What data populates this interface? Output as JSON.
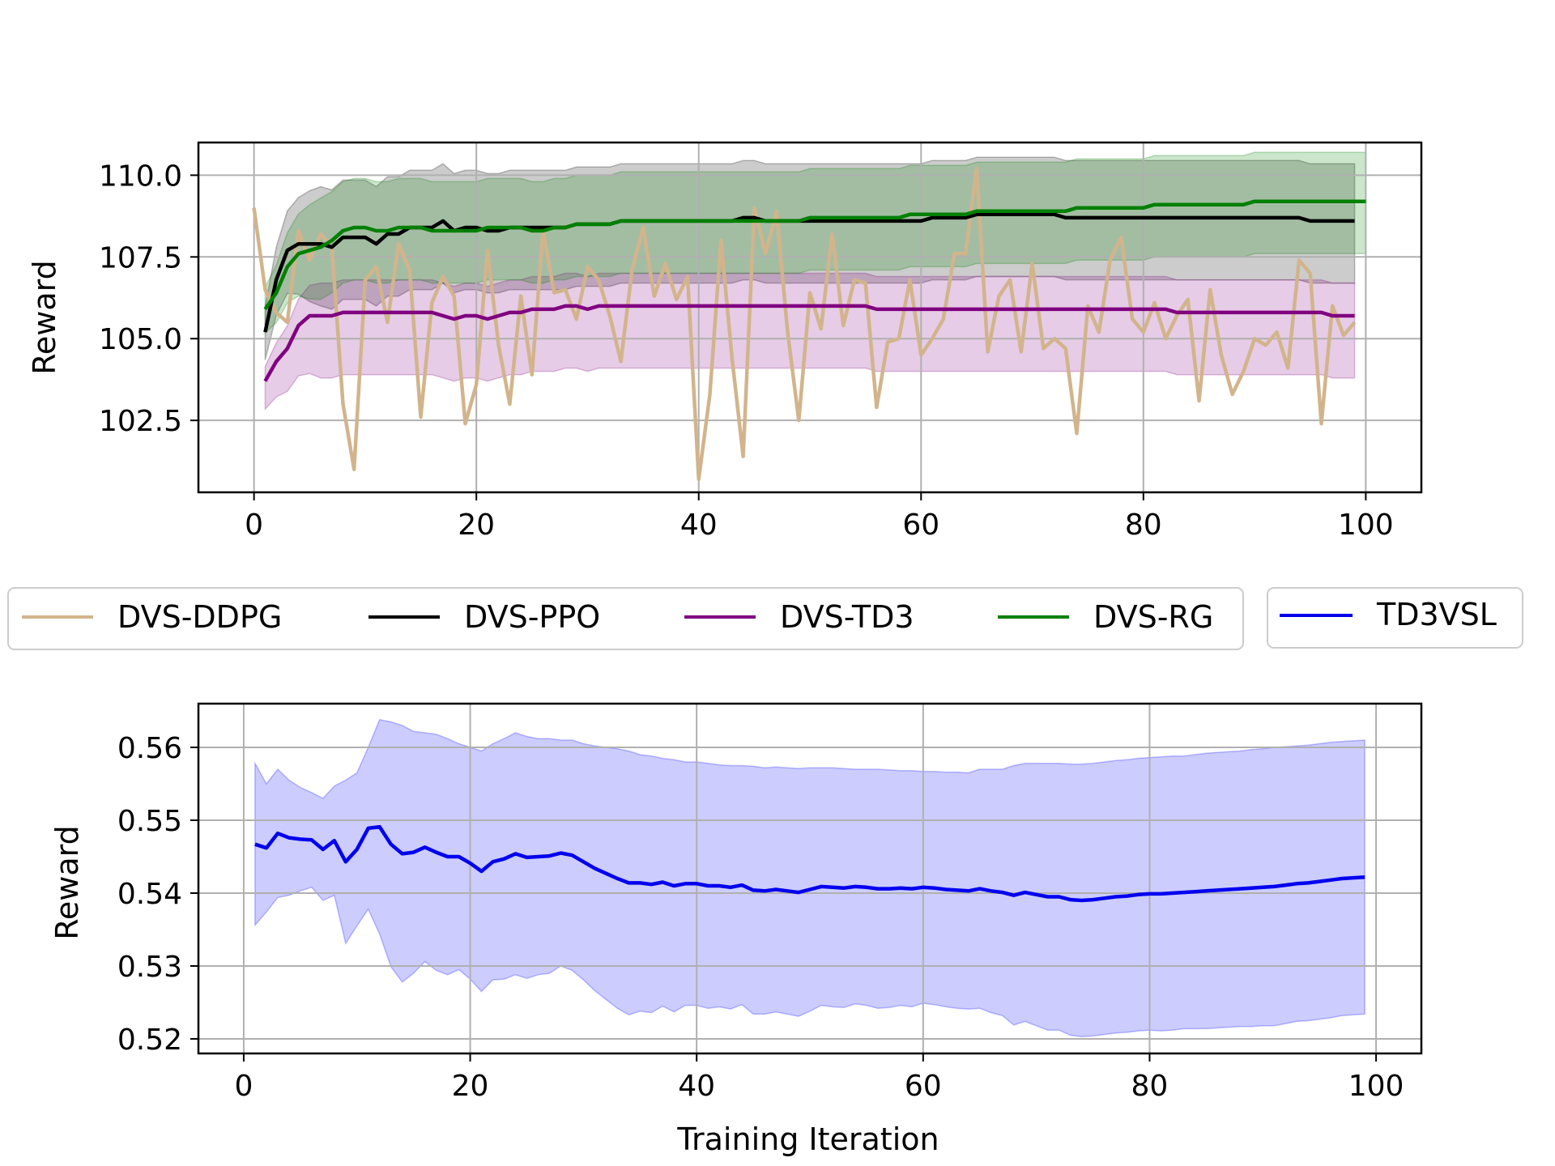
{
  "chart_data": [
    {
      "type": "line",
      "title": "",
      "xlabel": "",
      "ylabel": "Reward",
      "xlim": [
        -5,
        105
      ],
      "ylim": [
        100.3,
        111.0
      ],
      "xticks": [
        0,
        20,
        40,
        60,
        80,
        100
      ],
      "yticks": [
        102.5,
        105.0,
        107.5,
        110.0
      ],
      "ytick_labels": [
        "102.5",
        "105.0",
        "107.5",
        "110.0"
      ],
      "grid": true,
      "series": [
        {
          "name": "DVS-DDPG",
          "color": "#d2b48c",
          "x_start": 0,
          "values": [
            109.0,
            106.5,
            105.8,
            105.5,
            108.3,
            107.4,
            108.2,
            107.8,
            103.0,
            101.0,
            106.8,
            107.2,
            105.5,
            107.9,
            107.1,
            102.6,
            106.1,
            106.9,
            106.3,
            102.4,
            103.6,
            107.7,
            104.8,
            103.0,
            106.3,
            103.9,
            108.3,
            106.4,
            106.5,
            105.6,
            107.2,
            106.8,
            105.7,
            104.3,
            107.1,
            108.4,
            106.3,
            107.3,
            106.2,
            106.9,
            100.7,
            103.3,
            108.0,
            104.4,
            101.4,
            109.0,
            107.6,
            108.9,
            105.2,
            102.5,
            106.4,
            105.3,
            108.2,
            105.4,
            106.8,
            106.7,
            102.9,
            104.9,
            105.0,
            106.8,
            104.5,
            105.0,
            105.6,
            107.6,
            107.6,
            110.2,
            104.6,
            106.3,
            106.8,
            104.6,
            107.3,
            104.7,
            105.0,
            104.7,
            102.1,
            106.0,
            105.2,
            107.4,
            108.1,
            105.6,
            105.2,
            106.1,
            105.0,
            105.7,
            106.2,
            103.1,
            106.5,
            104.5,
            103.3,
            104.0,
            105.0,
            104.8,
            105.2,
            104.1,
            107.4,
            107.0,
            102.4,
            106.0,
            105.1,
            105.5
          ]
        },
        {
          "name": "DVS-PPO",
          "color": "#000000",
          "x_start": 1,
          "values": [
            105.2,
            106.8,
            107.7,
            107.9,
            107.9,
            107.9,
            107.8,
            108.1,
            108.1,
            108.1,
            107.9,
            108.2,
            108.2,
            108.4,
            108.4,
            108.4,
            108.6,
            108.3,
            108.4,
            108.4,
            108.3,
            108.3,
            108.4,
            108.4,
            108.4,
            108.4,
            108.4,
            108.4,
            108.5,
            108.5,
            108.5,
            108.5,
            108.6,
            108.6,
            108.6,
            108.6,
            108.6,
            108.6,
            108.6,
            108.6,
            108.6,
            108.6,
            108.6,
            108.7,
            108.7,
            108.6,
            108.6,
            108.6,
            108.6,
            108.6,
            108.6,
            108.6,
            108.6,
            108.6,
            108.6,
            108.6,
            108.6,
            108.6,
            108.6,
            108.6,
            108.7,
            108.7,
            108.7,
            108.7,
            108.8,
            108.8,
            108.8,
            108.8,
            108.8,
            108.8,
            108.8,
            108.8,
            108.7,
            108.7,
            108.7,
            108.7,
            108.7,
            108.7,
            108.7,
            108.7,
            108.7,
            108.7,
            108.7,
            108.7,
            108.7,
            108.7,
            108.7,
            108.7,
            108.7,
            108.7,
            108.7,
            108.7,
            108.7,
            108.7,
            108.6,
            108.6,
            108.6,
            108.6,
            108.6
          ]
        },
        {
          "name": "DVS-TD3",
          "color": "#800080",
          "x_start": 1,
          "values": [
            103.7,
            104.3,
            104.7,
            105.4,
            105.7,
            105.7,
            105.7,
            105.8,
            105.8,
            105.8,
            105.8,
            105.8,
            105.8,
            105.8,
            105.8,
            105.8,
            105.7,
            105.6,
            105.7,
            105.7,
            105.6,
            105.7,
            105.8,
            105.8,
            105.9,
            105.9,
            105.9,
            106.0,
            106.0,
            105.9,
            106.0,
            106.0,
            106.0,
            106.0,
            106.0,
            106.0,
            106.0,
            106.0,
            106.0,
            106.0,
            106.0,
            106.0,
            106.0,
            106.0,
            106.0,
            106.0,
            106.0,
            106.0,
            106.0,
            106.0,
            106.0,
            106.0,
            106.0,
            106.0,
            106.0,
            105.9,
            105.9,
            105.9,
            105.9,
            105.9,
            105.9,
            105.9,
            105.9,
            105.9,
            105.9,
            105.9,
            105.9,
            105.9,
            105.9,
            105.9,
            105.9,
            105.9,
            105.9,
            105.9,
            105.9,
            105.9,
            105.9,
            105.9,
            105.9,
            105.9,
            105.9,
            105.9,
            105.8,
            105.8,
            105.8,
            105.8,
            105.8,
            105.8,
            105.8,
            105.8,
            105.8,
            105.8,
            105.8,
            105.8,
            105.8,
            105.8,
            105.7,
            105.7,
            105.7
          ]
        },
        {
          "name": "DVS-RG",
          "color": "#008000",
          "x_start": 1,
          "values": [
            105.9,
            106.4,
            107.2,
            107.6,
            107.7,
            107.8,
            108.0,
            108.3,
            108.4,
            108.4,
            108.3,
            108.3,
            108.4,
            108.4,
            108.4,
            108.3,
            108.3,
            108.3,
            108.3,
            108.3,
            108.4,
            108.4,
            108.4,
            108.4,
            108.3,
            108.3,
            108.4,
            108.4,
            108.5,
            108.5,
            108.5,
            108.5,
            108.6,
            108.6,
            108.6,
            108.6,
            108.6,
            108.6,
            108.6,
            108.6,
            108.6,
            108.6,
            108.6,
            108.6,
            108.6,
            108.6,
            108.6,
            108.6,
            108.6,
            108.7,
            108.7,
            108.7,
            108.7,
            108.7,
            108.7,
            108.7,
            108.7,
            108.7,
            108.8,
            108.8,
            108.8,
            108.8,
            108.8,
            108.8,
            108.9,
            108.9,
            108.9,
            108.9,
            108.9,
            108.9,
            108.9,
            108.9,
            108.9,
            109.0,
            109.0,
            109.0,
            109.0,
            109.0,
            109.0,
            109.0,
            109.1,
            109.1,
            109.1,
            109.1,
            109.1,
            109.1,
            109.1,
            109.1,
            109.1,
            109.2,
            109.2,
            109.2,
            109.2,
            109.2,
            109.2,
            109.2,
            109.2,
            109.2,
            109.2,
            109.2
          ]
        }
      ],
      "bands": [
        {
          "series": "DVS-PPO",
          "color": "#000000",
          "x_start": 1,
          "lower_offset": -1.9,
          "upper_offset": 1.75
        },
        {
          "series": "DVS-TD3",
          "color": "#800080",
          "x_start": 1,
          "lower_offset": -1.9,
          "upper_offset": 1.0
        },
        {
          "series": "DVS-RG",
          "color": "#008000",
          "x_start": 1,
          "lower_offset": -1.6,
          "upper_offset": 1.5
        }
      ]
    },
    {
      "type": "line",
      "title": "",
      "xlabel": "Training Iteration",
      "ylabel": "Reward",
      "xlim": [
        -4,
        104
      ],
      "ylim": [
        0.518,
        0.566
      ],
      "xticks": [
        0,
        20,
        40,
        60,
        80,
        100
      ],
      "yticks": [
        0.52,
        0.53,
        0.54,
        0.55,
        0.56
      ],
      "ytick_labels": [
        "0.52",
        "0.53",
        "0.54",
        "0.55",
        "0.56"
      ],
      "grid": true,
      "series": [
        {
          "name": "TD3VSL",
          "color": "#0000ee",
          "x_start": 1,
          "values": [
            0.5467,
            0.5462,
            0.5482,
            0.5476,
            0.5474,
            0.5473,
            0.546,
            0.5472,
            0.5443,
            0.546,
            0.5489,
            0.5491,
            0.5467,
            0.5454,
            0.5456,
            0.5463,
            0.5456,
            0.545,
            0.545,
            0.5441,
            0.543,
            0.5443,
            0.5447,
            0.5454,
            0.5449,
            0.545,
            0.5451,
            0.5455,
            0.5452,
            0.5443,
            0.5434,
            0.5427,
            0.542,
            0.5414,
            0.5414,
            0.5412,
            0.5415,
            0.541,
            0.5413,
            0.5413,
            0.541,
            0.541,
            0.5408,
            0.5411,
            0.5404,
            0.5403,
            0.5405,
            0.5403,
            0.5401,
            0.5405,
            0.5409,
            0.5408,
            0.5407,
            0.5409,
            0.5408,
            0.5406,
            0.5406,
            0.5407,
            0.5406,
            0.5408,
            0.5407,
            0.5405,
            0.5404,
            0.5403,
            0.5406,
            0.5403,
            0.5401,
            0.5397,
            0.5401,
            0.5398,
            0.5395,
            0.5395,
            0.5391,
            0.539,
            0.5391,
            0.5393,
            0.5395,
            0.5396,
            0.5398,
            0.5399,
            0.5399,
            0.54,
            0.5401,
            0.5402,
            0.5403,
            0.5404,
            0.5405,
            0.5406,
            0.5407,
            0.5408,
            0.5409,
            0.5411,
            0.5413,
            0.5414,
            0.5416,
            0.5418,
            0.542,
            0.5421,
            0.5422
          ]
        }
      ],
      "bands": [
        {
          "series": "TD3VSL",
          "color": "#0000ff",
          "x_start": 1,
          "upper": [
            0.5578,
            0.555,
            0.557,
            0.5555,
            0.5545,
            0.5538,
            0.553,
            0.5547,
            0.5555,
            0.5565,
            0.56,
            0.5638,
            0.5635,
            0.563,
            0.5622,
            0.562,
            0.5618,
            0.5612,
            0.5605,
            0.56,
            0.5595,
            0.5605,
            0.5612,
            0.562,
            0.5615,
            0.5612,
            0.5612,
            0.561,
            0.561,
            0.5605,
            0.5602,
            0.56,
            0.5598,
            0.5595,
            0.559,
            0.5588,
            0.5585,
            0.5583,
            0.558,
            0.558,
            0.5578,
            0.5576,
            0.5575,
            0.5575,
            0.5574,
            0.5572,
            0.5573,
            0.5572,
            0.5571,
            0.5572,
            0.5572,
            0.5572,
            0.5571,
            0.557,
            0.557,
            0.557,
            0.5569,
            0.5568,
            0.5568,
            0.5567,
            0.5567,
            0.5566,
            0.5566,
            0.5565,
            0.557,
            0.557,
            0.557,
            0.5575,
            0.5578,
            0.5578,
            0.5578,
            0.5578,
            0.5577,
            0.5577,
            0.5578,
            0.558,
            0.5582,
            0.5583,
            0.5585,
            0.5586,
            0.5587,
            0.5588,
            0.5588,
            0.559,
            0.5592,
            0.5593,
            0.5594,
            0.5595,
            0.5597,
            0.5598,
            0.56,
            0.5601,
            0.5602,
            0.5603,
            0.5605,
            0.5607,
            0.5608,
            0.5609,
            0.561
          ]
        }
      ]
    }
  ],
  "legend": {
    "group": [
      "DVS-DDPG",
      "DVS-PPO",
      "DVS-TD3",
      "DVS-RG"
    ],
    "single": [
      "TD3VSL"
    ]
  }
}
